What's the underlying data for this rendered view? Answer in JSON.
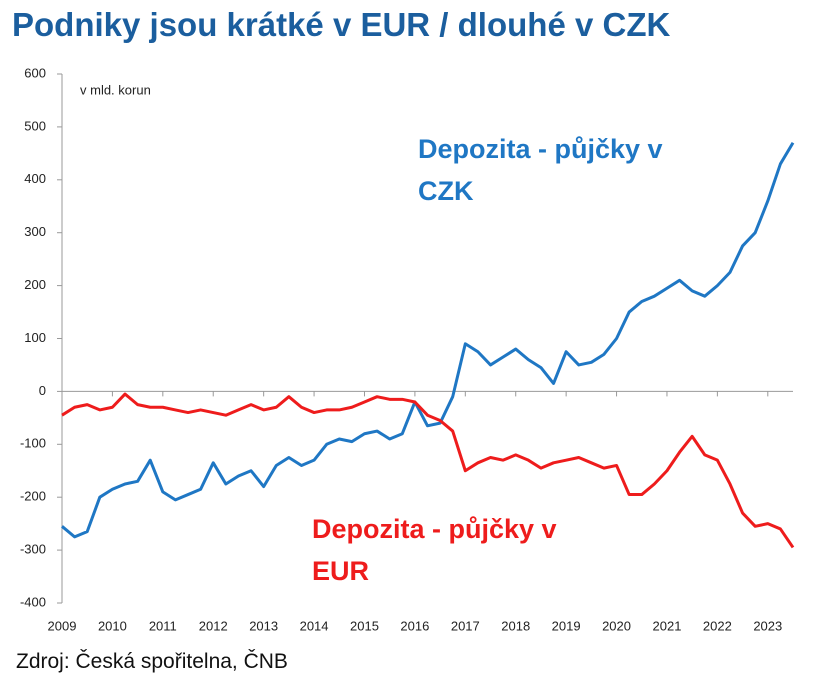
{
  "title": "Podniky jsou krátké v EUR / dlouhé v CZK",
  "source": "Zdroj: Česká spořitelna, ČNB",
  "chart_data": {
    "type": "line",
    "y_label": "v mld. korun",
    "x": [
      2009,
      2009.25,
      2009.5,
      2009.75,
      2010,
      2010.25,
      2010.5,
      2010.75,
      2011,
      2011.25,
      2011.5,
      2011.75,
      2012,
      2012.25,
      2012.5,
      2012.75,
      2013,
      2013.25,
      2013.5,
      2013.75,
      2014,
      2014.25,
      2014.5,
      2014.75,
      2015,
      2015.25,
      2015.5,
      2015.75,
      2016,
      2016.25,
      2016.5,
      2016.75,
      2017,
      2017.25,
      2017.5,
      2017.75,
      2018,
      2018.25,
      2018.5,
      2018.75,
      2019,
      2019.25,
      2019.5,
      2019.75,
      2020,
      2020.25,
      2020.5,
      2020.75,
      2021,
      2021.25,
      2021.5,
      2021.75,
      2022,
      2022.25,
      2022.5,
      2022.75,
      2023,
      2023.25,
      2023.5
    ],
    "series": [
      {
        "name": "Depozita - půjčky v CZK",
        "color": "#1f77c4",
        "values": [
          -255,
          -275,
          -265,
          -200,
          -185,
          -175,
          -170,
          -130,
          -190,
          -205,
          -195,
          -185,
          -135,
          -175,
          -160,
          -150,
          -180,
          -140,
          -125,
          -140,
          -130,
          -100,
          -90,
          -95,
          -80,
          -75,
          -90,
          -80,
          -20,
          -65,
          -60,
          -10,
          90,
          75,
          50,
          65,
          80,
          60,
          45,
          15,
          75,
          50,
          55,
          70,
          100,
          150,
          170,
          180,
          195,
          210,
          190,
          180,
          200,
          225,
          275,
          300,
          360,
          430,
          470
        ]
      },
      {
        "name": "Depozita - půjčky v EUR",
        "color": "#ee1c1c",
        "values": [
          -45,
          -30,
          -25,
          -35,
          -30,
          -5,
          -25,
          -30,
          -30,
          -35,
          -40,
          -35,
          -40,
          -45,
          -35,
          -25,
          -35,
          -30,
          -10,
          -30,
          -40,
          -35,
          -35,
          -30,
          -20,
          -10,
          -15,
          -15,
          -20,
          -45,
          -55,
          -75,
          -150,
          -135,
          -125,
          -130,
          -120,
          -130,
          -145,
          -135,
          -130,
          -125,
          -135,
          -145,
          -140,
          -195,
          -195,
          -175,
          -150,
          -115,
          -85,
          -120,
          -130,
          -175,
          -230,
          -255,
          -250,
          -260,
          -295
        ]
      }
    ],
    "xlim": [
      2009,
      2023.5
    ],
    "xticks": [
      2009,
      2010,
      2011,
      2012,
      2013,
      2014,
      2015,
      2016,
      2017,
      2018,
      2019,
      2020,
      2021,
      2022,
      2023
    ],
    "ylim": [
      -400,
      600
    ],
    "yticks": [
      -400,
      -300,
      -200,
      -100,
      0,
      100,
      200,
      300,
      400,
      500,
      600
    ]
  }
}
